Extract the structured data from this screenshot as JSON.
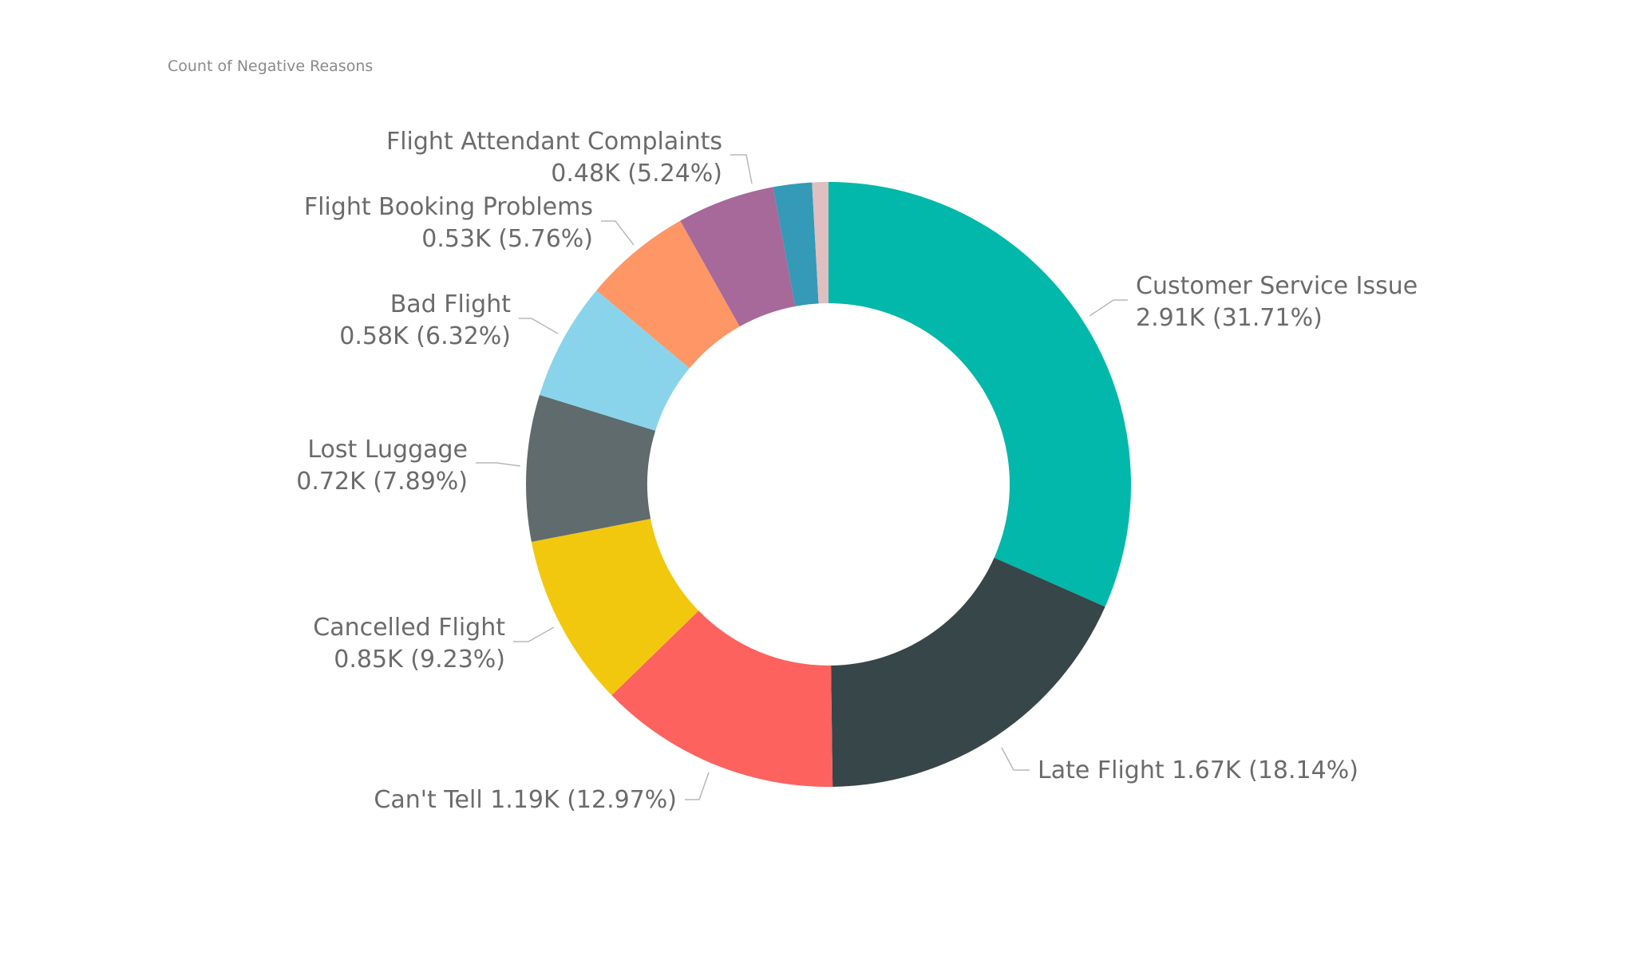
{
  "chart_data": {
    "type": "pie",
    "subtype": "donut",
    "title": "Count of Negative Reasons",
    "legend": "none",
    "slices": [
      {
        "name": "Customer Service Issue",
        "value": 2.91,
        "label": "Customer Service Issue",
        "value_label": "2.91K (31.71%)",
        "color": "#01B8AA"
      },
      {
        "name": "Late Flight",
        "value": 1.67,
        "label": "Late Flight 1.67K (18.14%)",
        "value_label": "",
        "color": "#374649"
      },
      {
        "name": "Can't Tell",
        "value": 1.19,
        "label": "Can't Tell 1.19K (12.97%)",
        "value_label": "",
        "color": "#FD625E"
      },
      {
        "name": "Cancelled Flight",
        "value": 0.85,
        "label": "Cancelled Flight",
        "value_label": "0.85K (9.23%)",
        "color": "#F2C80F"
      },
      {
        "name": "Lost Luggage",
        "value": 0.72,
        "label": "Lost Luggage",
        "value_label": "0.72K (7.89%)",
        "color": "#5F6B6D"
      },
      {
        "name": "Bad Flight",
        "value": 0.58,
        "label": "Bad Flight",
        "value_label": "0.58K (6.32%)",
        "color": "#8AD4EB"
      },
      {
        "name": "Flight Booking Problems",
        "value": 0.53,
        "label": "Flight Booking Problems",
        "value_label": "0.53K (5.76%)",
        "color": "#FE9666"
      },
      {
        "name": "Flight Attendant Complaints",
        "value": 0.48,
        "label": "Flight Attendant Complaints",
        "value_label": "0.48K (5.24%)",
        "color": "#A66999"
      },
      {
        "name": "",
        "value": 0.19,
        "label": "",
        "value_label": "",
        "color": "#3599B8"
      },
      {
        "name": "",
        "value": 0.08,
        "label": "",
        "value_label": "",
        "color": "#DFBFBF"
      }
    ]
  }
}
